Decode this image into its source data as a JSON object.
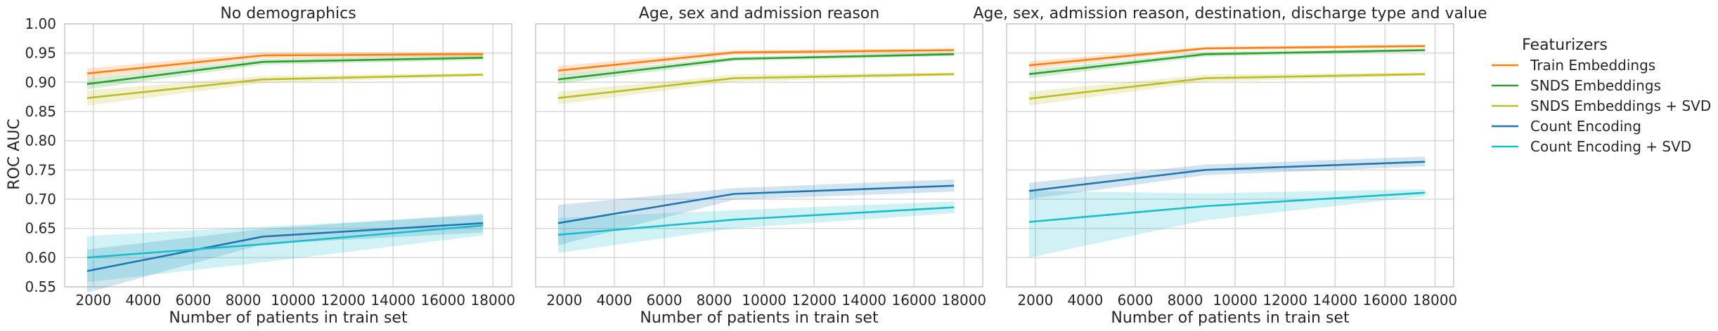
{
  "figure": {
    "ylabel": "ROC AUC",
    "xlabel": "Number of patients in train set",
    "legend_title": "Featurizers"
  },
  "chart_data": {
    "type": "line",
    "ylim": [
      0.55,
      1.0
    ],
    "yticks": [
      "1.00",
      "0.95",
      "0.90",
      "0.85",
      "0.80",
      "0.75",
      "0.70",
      "0.65",
      "0.60",
      "0.55"
    ],
    "xlim": [
      850,
      18750
    ],
    "xticks": [
      "2000",
      "4000",
      "6000",
      "8000",
      "10000",
      "12000",
      "14000",
      "16000",
      "18000"
    ],
    "grid": true,
    "legend_position": "right",
    "panels": [
      {
        "title": "No demographics",
        "series": [
          {
            "name": "Train Embeddings",
            "color": "#ff7f0e",
            "x": [
              1750,
              8800,
              17600
            ],
            "y": [
              0.915,
              0.946,
              0.948
            ],
            "lo": [
              0.906,
              0.941,
              0.944
            ],
            "hi": [
              0.924,
              0.951,
              0.952
            ]
          },
          {
            "name": "SNDS Embeddings",
            "color": "#2ca02c",
            "x": [
              1750,
              8800,
              17600
            ],
            "y": [
              0.897,
              0.935,
              0.942
            ],
            "lo": [
              0.888,
              0.93,
              0.938
            ],
            "hi": [
              0.906,
              0.94,
              0.946
            ]
          },
          {
            "name": "SNDS Embeddings + SVD",
            "color": "#bcbd22",
            "x": [
              1750,
              8800,
              17600
            ],
            "y": [
              0.873,
              0.905,
              0.913
            ],
            "lo": [
              0.86,
              0.899,
              0.91
            ],
            "hi": [
              0.886,
              0.911,
              0.916
            ]
          },
          {
            "name": "Count Encoding",
            "color": "#1f77b4",
            "x": [
              1750,
              8800,
              17600
            ],
            "y": [
              0.577,
              0.636,
              0.659
            ],
            "lo": [
              0.54,
              0.623,
              0.643
            ],
            "hi": [
              0.614,
              0.649,
              0.675
            ]
          },
          {
            "name": "Count Encoding + SVD",
            "color": "#17becf",
            "x": [
              1750,
              8800,
              17600
            ],
            "y": [
              0.6,
              0.623,
              0.655
            ],
            "lo": [
              0.558,
              0.592,
              0.638
            ],
            "hi": [
              0.637,
              0.653,
              0.672
            ]
          }
        ]
      },
      {
        "title": "Age, sex and admission reason",
        "series": [
          {
            "name": "Train Embeddings",
            "color": "#ff7f0e",
            "x": [
              1750,
              8800,
              17600
            ],
            "y": [
              0.92,
              0.951,
              0.955
            ],
            "lo": [
              0.912,
              0.947,
              0.952
            ],
            "hi": [
              0.928,
              0.955,
              0.958
            ]
          },
          {
            "name": "SNDS Embeddings",
            "color": "#2ca02c",
            "x": [
              1750,
              8800,
              17600
            ],
            "y": [
              0.905,
              0.94,
              0.948
            ],
            "lo": [
              0.897,
              0.936,
              0.945
            ],
            "hi": [
              0.913,
              0.944,
              0.951
            ]
          },
          {
            "name": "SNDS Embeddings + SVD",
            "color": "#bcbd22",
            "x": [
              1750,
              8800,
              17600
            ],
            "y": [
              0.873,
              0.907,
              0.914
            ],
            "lo": [
              0.862,
              0.901,
              0.911
            ],
            "hi": [
              0.884,
              0.913,
              0.917
            ]
          },
          {
            "name": "Count Encoding",
            "color": "#1f77b4",
            "x": [
              1750,
              8800,
              17600
            ],
            "y": [
              0.659,
              0.709,
              0.723
            ],
            "lo": [
              0.621,
              0.699,
              0.713
            ],
            "hi": [
              0.69,
              0.719,
              0.734
            ]
          },
          {
            "name": "Count Encoding + SVD",
            "color": "#17becf",
            "x": [
              1750,
              8800,
              17600
            ],
            "y": [
              0.639,
              0.665,
              0.686
            ],
            "lo": [
              0.608,
              0.65,
              0.676
            ],
            "hi": [
              0.668,
              0.681,
              0.696
            ]
          }
        ]
      },
      {
        "title": "Age, sex, admission reason, destination, discharge type and value",
        "series": [
          {
            "name": "Train Embeddings",
            "color": "#ff7f0e",
            "x": [
              1750,
              8800,
              17600
            ],
            "y": [
              0.929,
              0.958,
              0.962
            ],
            "lo": [
              0.922,
              0.955,
              0.959
            ],
            "hi": [
              0.936,
              0.961,
              0.965
            ]
          },
          {
            "name": "SNDS Embeddings",
            "color": "#2ca02c",
            "x": [
              1750,
              8800,
              17600
            ],
            "y": [
              0.914,
              0.948,
              0.955
            ],
            "lo": [
              0.907,
              0.944,
              0.952
            ],
            "hi": [
              0.921,
              0.952,
              0.958
            ]
          },
          {
            "name": "SNDS Embeddings + SVD",
            "color": "#bcbd22",
            "x": [
              1750,
              8800,
              17600
            ],
            "y": [
              0.872,
              0.907,
              0.914
            ],
            "lo": [
              0.86,
              0.901,
              0.911
            ],
            "hi": [
              0.884,
              0.913,
              0.917
            ]
          },
          {
            "name": "Count Encoding",
            "color": "#1f77b4",
            "x": [
              1750,
              8800,
              17600
            ],
            "y": [
              0.714,
              0.75,
              0.764
            ],
            "lo": [
              0.7,
              0.741,
              0.756
            ],
            "hi": [
              0.728,
              0.759,
              0.773
            ]
          },
          {
            "name": "Count Encoding + SVD",
            "color": "#17becf",
            "x": [
              1750,
              8800,
              17600
            ],
            "y": [
              0.661,
              0.688,
              0.711
            ],
            "lo": [
              0.6,
              0.664,
              0.705
            ],
            "hi": [
              0.714,
              0.71,
              0.717
            ]
          }
        ]
      }
    ],
    "legend": [
      {
        "name": "Train Embeddings",
        "color": "#ff7f0e"
      },
      {
        "name": "SNDS Embeddings",
        "color": "#2ca02c"
      },
      {
        "name": "SNDS Embeddings + SVD",
        "color": "#bcbd22"
      },
      {
        "name": "Count Encoding",
        "color": "#1f77b4"
      },
      {
        "name": "Count Encoding + SVD",
        "color": "#17becf"
      }
    ]
  }
}
